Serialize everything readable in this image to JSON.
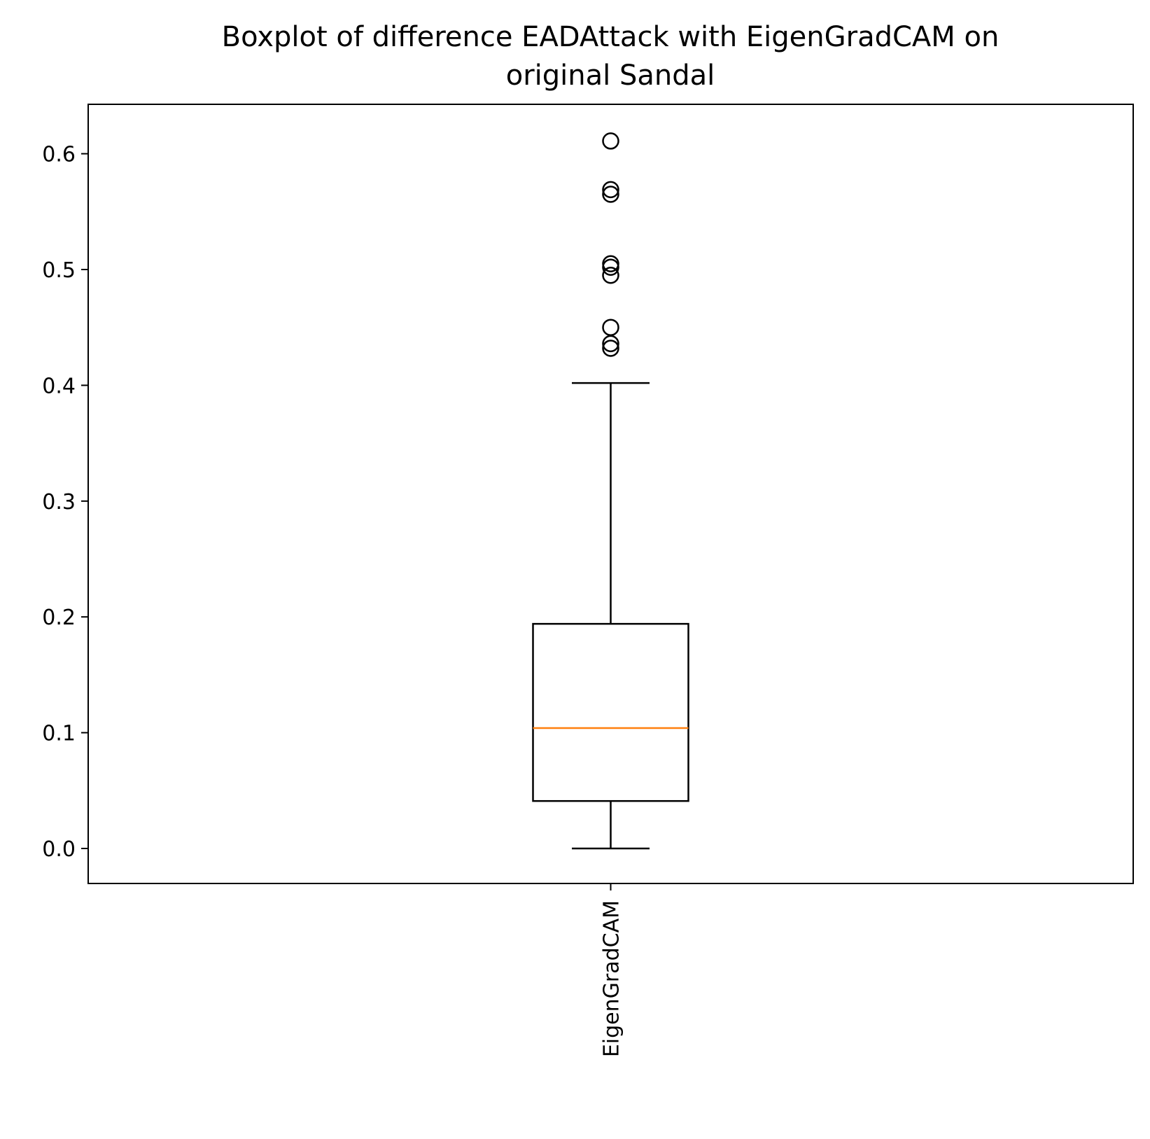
{
  "chart_data": {
    "type": "box",
    "title_lines": [
      "Boxplot of difference EADAttack with EigenGradCAM on",
      "original Sandal"
    ],
    "xlabel": "",
    "ylabel": "",
    "categories": [
      "EigenGradCAM"
    ],
    "yticks": [
      0.0,
      0.1,
      0.2,
      0.3,
      0.4,
      0.5,
      0.6
    ],
    "ytick_labels": [
      "0.0",
      "0.1",
      "0.2",
      "0.3",
      "0.4",
      "0.5",
      "0.6"
    ],
    "ylim": [
      -0.03,
      0.64
    ],
    "grid": false,
    "boxes": [
      {
        "name": "EigenGradCAM",
        "whisker_low": 0.0,
        "q1": 0.041,
        "median": 0.104,
        "q3": 0.194,
        "whisker_high": 0.402,
        "outliers": [
          0.432,
          0.436,
          0.45,
          0.495,
          0.502,
          0.505,
          0.565,
          0.569,
          0.611
        ]
      }
    ],
    "colors": {
      "box": "#000000",
      "median": "#ff7f0e",
      "outlier": "#000000"
    }
  }
}
